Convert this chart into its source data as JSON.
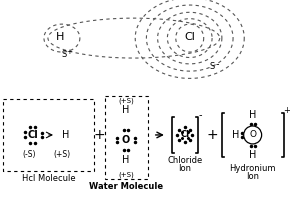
{
  "bg_color": "#ffffff",
  "line_color": "#000000",
  "dashed_color": "#555555",
  "hcl_label": "Hcl Molecule",
  "water_label": "Water Molecule",
  "chloride_label1": "Chloride",
  "chloride_label2": "Ion",
  "hydronium_label1": "Hydronium",
  "hydronium_label2": "Ion",
  "fig_width": 2.9,
  "fig_height": 2.09,
  "dpi": 100
}
